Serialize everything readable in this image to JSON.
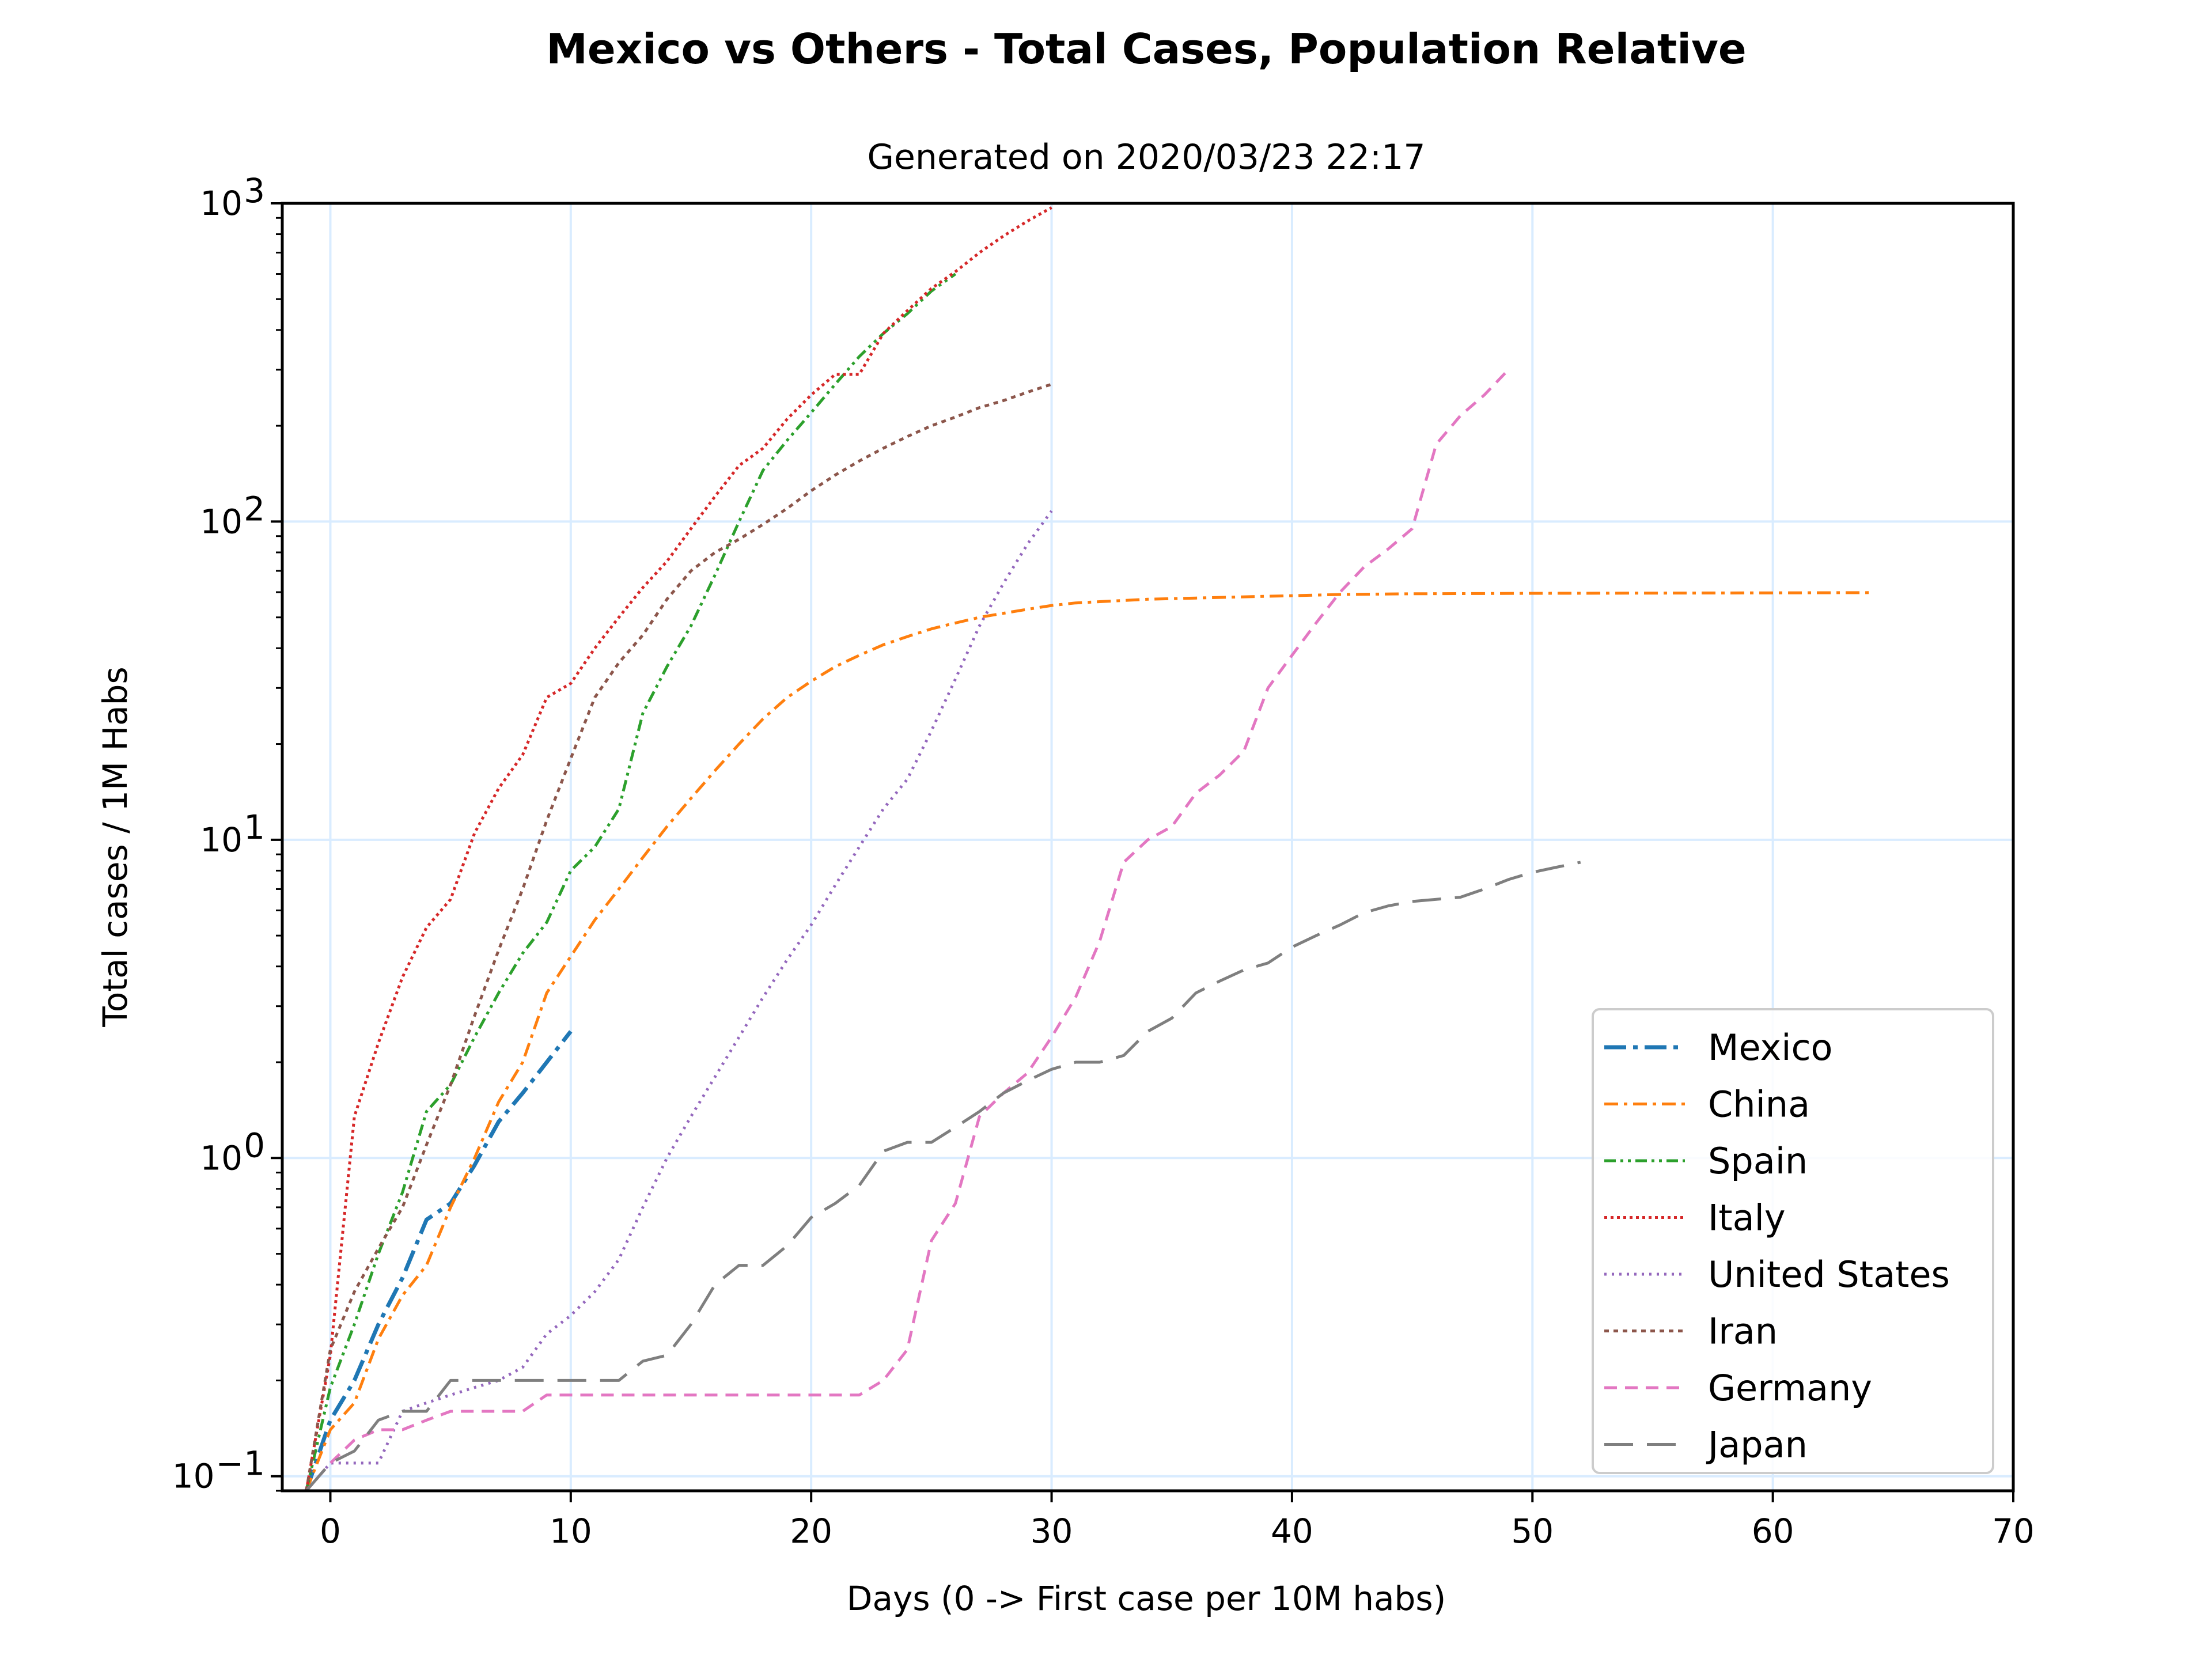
{
  "chart_data": {
    "type": "line",
    "title": "Mexico vs Others - Total Cases, Population Relative",
    "subtitle": "Generated on 2020/03/23 22:17",
    "xlabel": "Days (0 -> First case per 10M habs)",
    "ylabel": "Total cases / 1M Habs",
    "xlim": [
      -2,
      70
    ],
    "ylim": [
      0.09,
      1000
    ],
    "yscale": "log",
    "x_ticks": [
      0,
      10,
      20,
      30,
      40,
      50,
      60,
      70
    ],
    "y_ticks": [
      {
        "value": 0.1,
        "base": "10",
        "exp": "−1"
      },
      {
        "value": 1,
        "base": "10",
        "exp": "0"
      },
      {
        "value": 10,
        "base": "10",
        "exp": "1"
      },
      {
        "value": 100,
        "base": "10",
        "exp": "2"
      },
      {
        "value": 1000,
        "base": "10",
        "exp": "3"
      }
    ],
    "grid": true,
    "legend_position": "lower-right",
    "series": [
      {
        "name": "Mexico",
        "color": "#1f77b4",
        "dash": "longdashdot",
        "x": [
          -1,
          0,
          1,
          2,
          3,
          4,
          5,
          6,
          7,
          8,
          9,
          10
        ],
        "y": [
          0.09,
          0.15,
          0.2,
          0.3,
          0.42,
          0.64,
          0.72,
          0.95,
          1.3,
          1.6,
          2.0,
          2.5
        ]
      },
      {
        "name": "China",
        "color": "#ff7f0e",
        "dash": "dashdot",
        "x": [
          -1,
          0,
          1,
          2,
          3,
          4,
          5,
          6,
          7,
          8,
          9,
          10,
          11,
          12,
          13,
          14,
          15,
          16,
          17,
          18,
          19,
          20,
          21,
          22,
          23,
          24,
          25,
          26,
          27,
          28,
          29,
          30,
          31,
          32,
          34,
          36,
          38,
          40,
          42,
          45,
          50,
          55,
          60,
          64
        ],
        "y": [
          0.09,
          0.14,
          0.17,
          0.27,
          0.37,
          0.46,
          0.7,
          1.0,
          1.5,
          2.0,
          3.3,
          4.3,
          5.6,
          7.0,
          8.8,
          11,
          13.5,
          16.5,
          20,
          24,
          28,
          31.5,
          35,
          38,
          41,
          43.5,
          46,
          48,
          50,
          51.5,
          53,
          54.5,
          55.5,
          56,
          57,
          57.5,
          58,
          58.5,
          59,
          59.3,
          59.5,
          59.6,
          59.7,
          59.8
        ]
      },
      {
        "name": "Spain",
        "color": "#2ca02c",
        "dash": "dashdotdot",
        "x": [
          -1,
          0,
          1,
          2,
          3,
          4,
          5,
          6,
          7,
          8,
          9,
          10,
          11,
          12,
          13,
          14,
          15,
          16,
          17,
          18,
          19,
          20,
          21,
          22,
          23,
          24,
          25,
          26
        ],
        "y": [
          0.09,
          0.19,
          0.3,
          0.5,
          0.78,
          1.4,
          1.7,
          2.4,
          3.3,
          4.4,
          5.5,
          8.0,
          9.5,
          12.5,
          25,
          35,
          47,
          68,
          100,
          145,
          180,
          220,
          270,
          330,
          390,
          450,
          530,
          600
        ]
      },
      {
        "name": "Italy",
        "color": "#d62728",
        "dash": "densedot",
        "x": [
          -1,
          0,
          1,
          2,
          3,
          4,
          5,
          6,
          7,
          8,
          9,
          10,
          11,
          12,
          13,
          14,
          15,
          16,
          17,
          18,
          19,
          20,
          21,
          22,
          23,
          24,
          25,
          26,
          27,
          28,
          29,
          30
        ],
        "y": [
          0.09,
          0.24,
          1.35,
          2.3,
          3.7,
          5.3,
          6.5,
          10.5,
          14.5,
          18.5,
          28,
          31,
          40,
          50,
          62,
          75,
          95,
          120,
          150,
          170,
          210,
          250,
          290,
          290,
          390,
          460,
          540,
          610,
          700,
          790,
          880,
          970
        ]
      },
      {
        "name": "United States",
        "color": "#9467bd",
        "dash": "dot",
        "x": [
          -1,
          0,
          1,
          2,
          3,
          4,
          5,
          6,
          7,
          8,
          9,
          10,
          11,
          12,
          13,
          14,
          15,
          16,
          17,
          18,
          19,
          20,
          21,
          22,
          23,
          24,
          25,
          26,
          27,
          28,
          29,
          30
        ],
        "y": [
          0.09,
          0.11,
          0.11,
          0.11,
          0.16,
          0.17,
          0.18,
          0.19,
          0.2,
          0.22,
          0.28,
          0.32,
          0.38,
          0.48,
          0.7,
          1.0,
          1.35,
          1.8,
          2.4,
          3.2,
          4.2,
          5.4,
          7.2,
          9.5,
          12.5,
          15.5,
          22,
          32,
          47,
          64,
          85,
          108
        ]
      },
      {
        "name": "Iran",
        "color": "#8c564b",
        "dash": "shortdash",
        "x": [
          -1,
          0,
          1,
          2,
          3,
          4,
          5,
          6,
          7,
          8,
          9,
          10,
          11,
          12,
          13,
          14,
          15,
          16,
          17,
          18,
          19,
          20,
          21,
          22,
          23,
          24,
          25,
          26,
          27,
          28,
          29,
          30
        ],
        "y": [
          0.09,
          0.25,
          0.38,
          0.52,
          0.7,
          1.1,
          1.7,
          2.8,
          4.5,
          7.0,
          11.5,
          18,
          28,
          36,
          44,
          57,
          70,
          80,
          88,
          98,
          110,
          125,
          140,
          155,
          170,
          185,
          200,
          213,
          228,
          240,
          255,
          270
        ]
      },
      {
        "name": "Germany",
        "color": "#e377c2",
        "dash": "dash",
        "x": [
          -2,
          -1,
          0,
          1,
          2,
          3,
          4,
          5,
          6,
          7,
          8,
          9,
          10,
          12,
          14,
          16,
          18,
          20,
          22,
          23,
          24,
          25,
          26,
          27,
          28,
          29,
          30,
          31,
          32,
          33,
          34,
          35,
          36,
          37,
          38,
          39,
          40,
          41,
          42,
          43,
          44,
          45,
          46,
          47,
          48,
          49
        ],
        "y": [
          0.085,
          0.09,
          0.11,
          0.13,
          0.14,
          0.14,
          0.15,
          0.16,
          0.16,
          0.16,
          0.16,
          0.18,
          0.18,
          0.18,
          0.18,
          0.18,
          0.18,
          0.18,
          0.18,
          0.2,
          0.25,
          0.55,
          0.72,
          1.35,
          1.6,
          1.85,
          2.4,
          3.2,
          4.8,
          8.5,
          10,
          11,
          14,
          16,
          19,
          30,
          38,
          48,
          60,
          72,
          82,
          95,
          175,
          215,
          250,
          300
        ]
      },
      {
        "name": "Japan",
        "color": "#7f7f7f",
        "dash": "longdash",
        "x": [
          -1,
          0,
          1,
          2,
          3,
          4,
          5,
          6,
          7,
          8,
          9,
          10,
          11,
          12,
          13,
          14,
          15,
          16,
          17,
          18,
          19,
          20,
          21,
          22,
          23,
          24,
          25,
          26,
          27,
          28,
          29,
          30,
          31,
          32,
          33,
          34,
          35,
          36,
          37,
          38,
          39,
          40,
          41,
          42,
          43,
          44,
          45,
          46,
          47,
          48,
          49,
          50,
          51,
          52
        ],
        "y": [
          0.09,
          0.11,
          0.12,
          0.15,
          0.16,
          0.16,
          0.2,
          0.2,
          0.2,
          0.2,
          0.2,
          0.2,
          0.2,
          0.2,
          0.23,
          0.24,
          0.3,
          0.4,
          0.46,
          0.46,
          0.53,
          0.65,
          0.72,
          0.82,
          1.05,
          1.12,
          1.12,
          1.25,
          1.4,
          1.6,
          1.75,
          1.9,
          2.0,
          2.0,
          2.1,
          2.5,
          2.75,
          3.3,
          3.6,
          3.9,
          4.1,
          4.6,
          5.0,
          5.4,
          5.9,
          6.2,
          6.4,
          6.5,
          6.6,
          7.0,
          7.5,
          7.9,
          8.2,
          8.5
        ]
      }
    ]
  }
}
